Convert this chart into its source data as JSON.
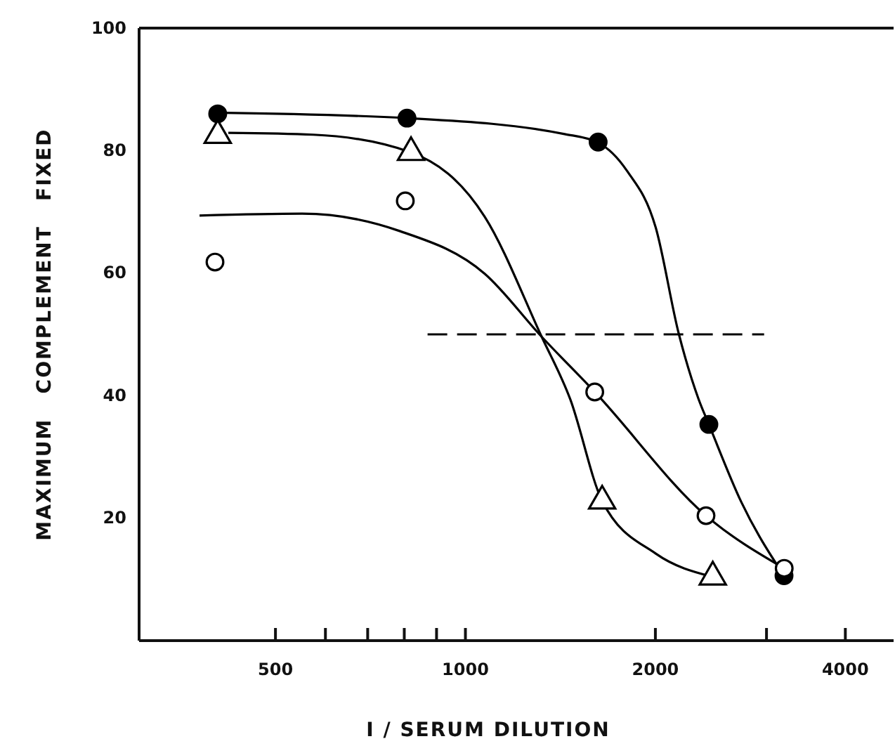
{
  "chart_data": {
    "type": "scatter",
    "xlabel": "I / SERUM DILUTION",
    "ylabel": "MAXIMUM   COMPLEMENT   FIXED",
    "log": "x",
    "xlim": [
      304,
      4770
    ],
    "ylim": [
      0,
      100
    ],
    "xticks": [
      500,
      {
        "value": 600,
        "label": null
      },
      {
        "value": 700,
        "label": null
      },
      {
        "value": 800,
        "label": null
      },
      {
        "value": 900,
        "label": null
      },
      1000,
      2000,
      {
        "value": 3000,
        "label": null
      },
      4000
    ],
    "yticks": [
      20,
      40,
      60,
      80,
      100
    ],
    "grid": false,
    "series": [
      {
        "type": "scatter",
        "color": "#000000",
        "marker": "circle",
        "x": [
          405,
          808,
          1623,
          2431,
          3198
        ],
        "values": [
          86,
          85.3,
          81.4,
          35.3,
          10.6
        ]
      },
      {
        "type": "scatter",
        "color": "#ffffff",
        "marker": "triangle",
        "x": [
          405,
          820,
          1647,
          2466
        ],
        "values": [
          82.5,
          79.7,
          22.8,
          10.4
        ]
      },
      {
        "type": "scatter",
        "color": "#ffffff",
        "marker": "circle",
        "x": [
          401,
          803,
          1603,
          2406,
          3200
        ],
        "values": [
          61.8,
          71.8,
          40.6,
          20.4,
          11.8
        ]
      },
      {
        "type": "line",
        "color": "#000000",
        "line_style": "solid",
        "x": [
          400,
          808,
          1436,
          1623,
          1803,
          2003,
          2177,
          2342,
          2431,
          2737,
          3198
        ],
        "values": [
          86.2,
          85.3,
          82.7,
          81.3,
          76.7,
          67.4,
          50.2,
          39.4,
          35.3,
          22.6,
          10.6
        ]
      },
      {
        "type": "line",
        "color": "#000000",
        "line_style": "solid",
        "x": [
          421,
          574,
          820,
          1073,
          1321,
          1466,
          1647,
          2003,
          2466
        ],
        "values": [
          82.9,
          82.6,
          79.7,
          69.2,
          49.6,
          39.4,
          22.8,
          14.2,
          10.4
        ]
      },
      {
        "type": "line",
        "color": "#000000",
        "line_style": "solid",
        "x": [
          379,
          551,
          785,
          1073,
          1321,
          1603,
          2406,
          3200
        ],
        "values": [
          69.4,
          69.7,
          66.9,
          59.9,
          49.6,
          40.6,
          20.4,
          11.8
        ]
      },
      {
        "type": "line",
        "color": "#000000",
        "line_style": "dashed",
        "x": [
          871,
          2974
        ],
        "values": [
          50,
          50
        ]
      }
    ]
  }
}
